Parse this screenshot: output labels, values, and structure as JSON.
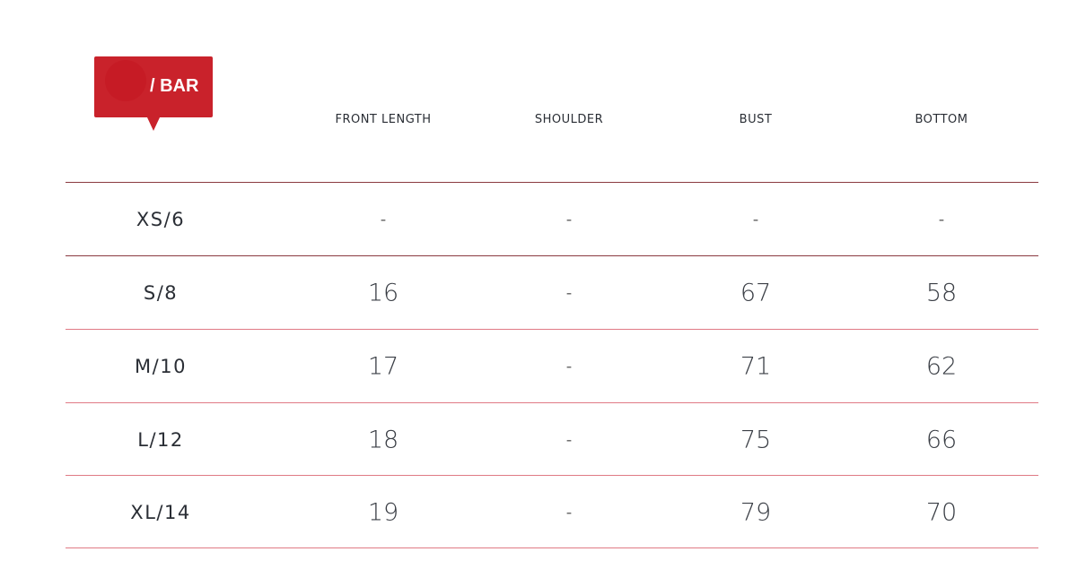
{
  "badge": {
    "label": "/ BAR"
  },
  "columns": [
    "FRONT LENGTH",
    "SHOULDER",
    "BUST",
    "BOTTOM"
  ],
  "rows": [
    {
      "size": "XS/6",
      "values": [
        "-",
        "-",
        "-",
        "-"
      ]
    },
    {
      "size": "S/8",
      "values": [
        "16",
        "-",
        "67",
        "58"
      ]
    },
    {
      "size": "M/10",
      "values": [
        "17",
        "-",
        "71",
        "62"
      ]
    },
    {
      "size": "L/12",
      "values": [
        "18",
        "-",
        "75",
        "66"
      ]
    },
    {
      "size": "XL/14",
      "values": [
        "19",
        "-",
        "79",
        "70"
      ]
    }
  ],
  "colors": {
    "accent": "#c9222b",
    "divider_dark": "#8a3a40",
    "divider_light": "#e07a85"
  }
}
